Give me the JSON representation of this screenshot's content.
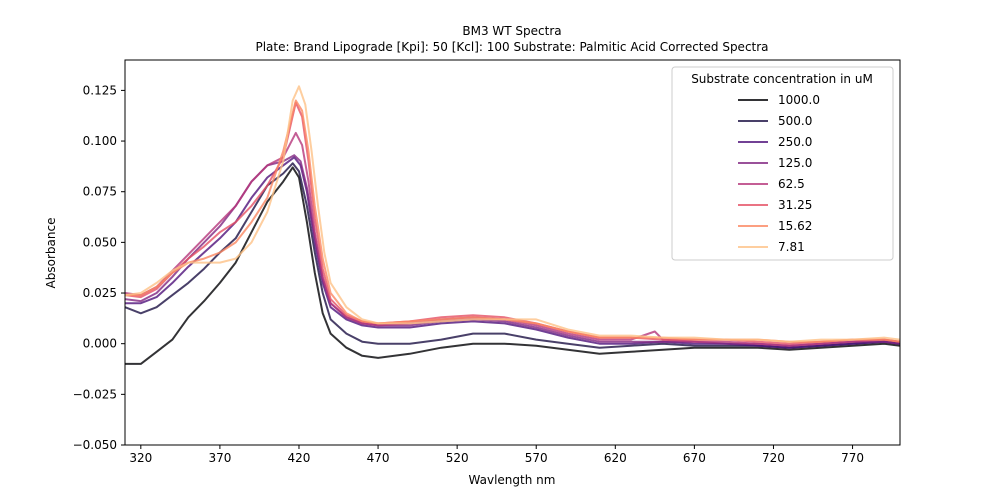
{
  "chart_data": {
    "type": "line",
    "title": "BM3 WT Spectra",
    "subtitle": "Plate: Brand Lipograde  [Kpi]: 50  [Kcl]: 100  Substrate: Palmitic Acid Corrected Spectra",
    "xlabel": "Wavlength nm",
    "ylabel": "Absorbance",
    "xlim": [
      310,
      800
    ],
    "ylim": [
      -0.05,
      0.14
    ],
    "xticks": [
      320,
      370,
      420,
      470,
      520,
      570,
      620,
      670,
      720,
      770
    ],
    "yticks": [
      -0.05,
      -0.025,
      0.0,
      0.025,
      0.05,
      0.075,
      0.1,
      0.125
    ],
    "grid": false,
    "legend": {
      "title": "Substrate concentration in uM",
      "placement": "top-right"
    },
    "series": [
      {
        "name": "1000.0",
        "color": "#000004",
        "points": [
          [
            310,
            -0.01
          ],
          [
            320,
            -0.01
          ],
          [
            330,
            -0.004
          ],
          [
            340,
            0.002
          ],
          [
            350,
            0.013
          ],
          [
            360,
            0.021
          ],
          [
            370,
            0.03
          ],
          [
            380,
            0.04
          ],
          [
            390,
            0.055
          ],
          [
            400,
            0.07
          ],
          [
            410,
            0.08
          ],
          [
            416,
            0.087
          ],
          [
            420,
            0.082
          ],
          [
            425,
            0.06
          ],
          [
            430,
            0.035
          ],
          [
            435,
            0.015
          ],
          [
            440,
            0.005
          ],
          [
            450,
            -0.002
          ],
          [
            460,
            -0.006
          ],
          [
            470,
            -0.007
          ],
          [
            490,
            -0.005
          ],
          [
            510,
            -0.002
          ],
          [
            530,
            0.0
          ],
          [
            550,
            0.0
          ],
          [
            570,
            -0.001
          ],
          [
            590,
            -0.003
          ],
          [
            610,
            -0.005
          ],
          [
            630,
            -0.004
          ],
          [
            650,
            -0.003
          ],
          [
            670,
            -0.002
          ],
          [
            690,
            -0.002
          ],
          [
            710,
            -0.002
          ],
          [
            730,
            -0.003
          ],
          [
            750,
            -0.002
          ],
          [
            770,
            -0.001
          ],
          [
            790,
            0.0
          ],
          [
            800,
            -0.001
          ]
        ]
      },
      {
        "name": "500.0",
        "color": "#1c1044",
        "points": [
          [
            310,
            0.018
          ],
          [
            320,
            0.015
          ],
          [
            330,
            0.018
          ],
          [
            340,
            0.024
          ],
          [
            350,
            0.03
          ],
          [
            360,
            0.037
          ],
          [
            370,
            0.045
          ],
          [
            380,
            0.052
          ],
          [
            390,
            0.065
          ],
          [
            400,
            0.078
          ],
          [
            410,
            0.084
          ],
          [
            416,
            0.089
          ],
          [
            420,
            0.085
          ],
          [
            425,
            0.068
          ],
          [
            430,
            0.045
          ],
          [
            435,
            0.025
          ],
          [
            440,
            0.012
          ],
          [
            450,
            0.005
          ],
          [
            460,
            0.001
          ],
          [
            470,
            0.0
          ],
          [
            490,
            0.0
          ],
          [
            510,
            0.002
          ],
          [
            530,
            0.005
          ],
          [
            550,
            0.005
          ],
          [
            570,
            0.002
          ],
          [
            590,
            0.0
          ],
          [
            610,
            -0.002
          ],
          [
            630,
            -0.001
          ],
          [
            650,
            0.0
          ],
          [
            670,
            -0.001
          ],
          [
            690,
            -0.001
          ],
          [
            710,
            -0.001
          ],
          [
            730,
            -0.002
          ],
          [
            750,
            -0.001
          ],
          [
            770,
            0.0
          ],
          [
            790,
            0.001
          ],
          [
            800,
            0.0
          ]
        ]
      },
      {
        "name": "250.0",
        "color": "#4f127b",
        "points": [
          [
            310,
            0.02
          ],
          [
            320,
            0.02
          ],
          [
            330,
            0.023
          ],
          [
            340,
            0.03
          ],
          [
            350,
            0.038
          ],
          [
            360,
            0.045
          ],
          [
            370,
            0.052
          ],
          [
            380,
            0.06
          ],
          [
            390,
            0.072
          ],
          [
            400,
            0.082
          ],
          [
            410,
            0.088
          ],
          [
            417,
            0.092
          ],
          [
            421,
            0.088
          ],
          [
            425,
            0.075
          ],
          [
            430,
            0.05
          ],
          [
            435,
            0.03
          ],
          [
            440,
            0.018
          ],
          [
            450,
            0.012
          ],
          [
            460,
            0.009
          ],
          [
            470,
            0.008
          ],
          [
            490,
            0.008
          ],
          [
            510,
            0.01
          ],
          [
            530,
            0.011
          ],
          [
            550,
            0.01
          ],
          [
            570,
            0.007
          ],
          [
            590,
            0.003
          ],
          [
            610,
            0.0
          ],
          [
            630,
            0.0
          ],
          [
            650,
            0.001
          ],
          [
            670,
            0.0
          ],
          [
            690,
            0.0
          ],
          [
            710,
            -0.001
          ],
          [
            730,
            -0.002
          ],
          [
            750,
            -0.001
          ],
          [
            770,
            0.0
          ],
          [
            790,
            0.001
          ],
          [
            800,
            0.0
          ]
        ]
      },
      {
        "name": "125.0",
        "color": "#812581",
        "points": [
          [
            310,
            0.022
          ],
          [
            320,
            0.021
          ],
          [
            330,
            0.025
          ],
          [
            340,
            0.033
          ],
          [
            350,
            0.042
          ],
          [
            360,
            0.05
          ],
          [
            370,
            0.058
          ],
          [
            380,
            0.068
          ],
          [
            390,
            0.08
          ],
          [
            400,
            0.088
          ],
          [
            410,
            0.09
          ],
          [
            417,
            0.093
          ],
          [
            421,
            0.09
          ],
          [
            425,
            0.077
          ],
          [
            430,
            0.053
          ],
          [
            435,
            0.032
          ],
          [
            440,
            0.02
          ],
          [
            450,
            0.013
          ],
          [
            460,
            0.01
          ],
          [
            470,
            0.009
          ],
          [
            490,
            0.009
          ],
          [
            510,
            0.011
          ],
          [
            530,
            0.012
          ],
          [
            550,
            0.011
          ],
          [
            570,
            0.008
          ],
          [
            590,
            0.004
          ],
          [
            610,
            0.001
          ],
          [
            630,
            0.001
          ],
          [
            650,
            0.001
          ],
          [
            670,
            0.001
          ],
          [
            690,
            0.0
          ],
          [
            710,
            0.0
          ],
          [
            730,
            -0.001
          ],
          [
            750,
            0.0
          ],
          [
            770,
            0.001
          ],
          [
            790,
            0.001
          ],
          [
            800,
            0.0
          ]
        ]
      },
      {
        "name": "62.5",
        "color": "#b5367a",
        "points": [
          [
            310,
            0.025
          ],
          [
            320,
            0.024
          ],
          [
            330,
            0.028
          ],
          [
            340,
            0.036
          ],
          [
            350,
            0.044
          ],
          [
            360,
            0.052
          ],
          [
            370,
            0.06
          ],
          [
            380,
            0.068
          ],
          [
            390,
            0.08
          ],
          [
            400,
            0.088
          ],
          [
            410,
            0.092
          ],
          [
            418,
            0.104
          ],
          [
            422,
            0.098
          ],
          [
            426,
            0.08
          ],
          [
            430,
            0.055
          ],
          [
            435,
            0.033
          ],
          [
            440,
            0.02
          ],
          [
            450,
            0.013
          ],
          [
            460,
            0.01
          ],
          [
            470,
            0.009
          ],
          [
            490,
            0.01
          ],
          [
            510,
            0.012
          ],
          [
            530,
            0.013
          ],
          [
            550,
            0.012
          ],
          [
            570,
            0.009
          ],
          [
            590,
            0.005
          ],
          [
            610,
            0.002
          ],
          [
            630,
            0.002
          ],
          [
            645,
            0.006
          ],
          [
            650,
            0.002
          ],
          [
            670,
            0.001
          ],
          [
            690,
            0.001
          ],
          [
            710,
            0.0
          ],
          [
            730,
            -0.001
          ],
          [
            750,
            0.0
          ],
          [
            770,
            0.001
          ],
          [
            790,
            0.002
          ],
          [
            800,
            0.001
          ]
        ]
      },
      {
        "name": "31.25",
        "color": "#e55064",
        "points": [
          [
            310,
            0.024
          ],
          [
            320,
            0.023
          ],
          [
            330,
            0.027
          ],
          [
            340,
            0.035
          ],
          [
            350,
            0.042
          ],
          [
            360,
            0.048
          ],
          [
            370,
            0.055
          ],
          [
            380,
            0.06
          ],
          [
            390,
            0.068
          ],
          [
            400,
            0.078
          ],
          [
            410,
            0.092
          ],
          [
            418,
            0.119
          ],
          [
            422,
            0.112
          ],
          [
            426,
            0.09
          ],
          [
            430,
            0.062
          ],
          [
            435,
            0.037
          ],
          [
            440,
            0.022
          ],
          [
            450,
            0.014
          ],
          [
            460,
            0.011
          ],
          [
            470,
            0.01
          ],
          [
            490,
            0.011
          ],
          [
            510,
            0.013
          ],
          [
            530,
            0.014
          ],
          [
            550,
            0.013
          ],
          [
            570,
            0.01
          ],
          [
            590,
            0.006
          ],
          [
            610,
            0.003
          ],
          [
            630,
            0.003
          ],
          [
            650,
            0.002
          ],
          [
            670,
            0.002
          ],
          [
            690,
            0.002
          ],
          [
            710,
            0.001
          ],
          [
            730,
            0.0
          ],
          [
            750,
            0.001
          ],
          [
            770,
            0.002
          ],
          [
            790,
            0.002
          ],
          [
            800,
            0.001
          ]
        ]
      },
      {
        "name": "15.62",
        "color": "#fb8761",
        "points": [
          [
            310,
            0.024
          ],
          [
            320,
            0.024
          ],
          [
            330,
            0.028
          ],
          [
            340,
            0.035
          ],
          [
            350,
            0.04
          ],
          [
            360,
            0.042
          ],
          [
            370,
            0.045
          ],
          [
            380,
            0.05
          ],
          [
            390,
            0.06
          ],
          [
            400,
            0.072
          ],
          [
            410,
            0.095
          ],
          [
            418,
            0.12
          ],
          [
            422,
            0.115
          ],
          [
            426,
            0.095
          ],
          [
            430,
            0.068
          ],
          [
            435,
            0.042
          ],
          [
            440,
            0.025
          ],
          [
            450,
            0.015
          ],
          [
            460,
            0.011
          ],
          [
            470,
            0.01
          ],
          [
            490,
            0.011
          ],
          [
            510,
            0.012
          ],
          [
            530,
            0.013
          ],
          [
            550,
            0.012
          ],
          [
            570,
            0.01
          ],
          [
            590,
            0.006
          ],
          [
            610,
            0.003
          ],
          [
            630,
            0.003
          ],
          [
            650,
            0.003
          ],
          [
            670,
            0.002
          ],
          [
            690,
            0.002
          ],
          [
            710,
            0.002
          ],
          [
            730,
            0.001
          ],
          [
            750,
            0.001
          ],
          [
            770,
            0.002
          ],
          [
            790,
            0.002
          ],
          [
            800,
            0.001
          ]
        ]
      },
      {
        "name": "7.81",
        "color": "#fec287",
        "points": [
          [
            310,
            0.024
          ],
          [
            320,
            0.025
          ],
          [
            330,
            0.03
          ],
          [
            340,
            0.036
          ],
          [
            350,
            0.04
          ],
          [
            360,
            0.04
          ],
          [
            370,
            0.04
          ],
          [
            380,
            0.042
          ],
          [
            390,
            0.05
          ],
          [
            400,
            0.065
          ],
          [
            410,
            0.09
          ],
          [
            416,
            0.12
          ],
          [
            420,
            0.127
          ],
          [
            424,
            0.118
          ],
          [
            428,
            0.095
          ],
          [
            432,
            0.068
          ],
          [
            436,
            0.045
          ],
          [
            440,
            0.03
          ],
          [
            450,
            0.018
          ],
          [
            460,
            0.012
          ],
          [
            470,
            0.01
          ],
          [
            490,
            0.01
          ],
          [
            510,
            0.011
          ],
          [
            530,
            0.012
          ],
          [
            550,
            0.012
          ],
          [
            570,
            0.012
          ],
          [
            590,
            0.007
          ],
          [
            610,
            0.004
          ],
          [
            630,
            0.004
          ],
          [
            650,
            0.003
          ],
          [
            670,
            0.003
          ],
          [
            690,
            0.002
          ],
          [
            710,
            0.002
          ],
          [
            730,
            0.001
          ],
          [
            750,
            0.002
          ],
          [
            770,
            0.002
          ],
          [
            790,
            0.003
          ],
          [
            800,
            0.002
          ]
        ]
      }
    ]
  }
}
